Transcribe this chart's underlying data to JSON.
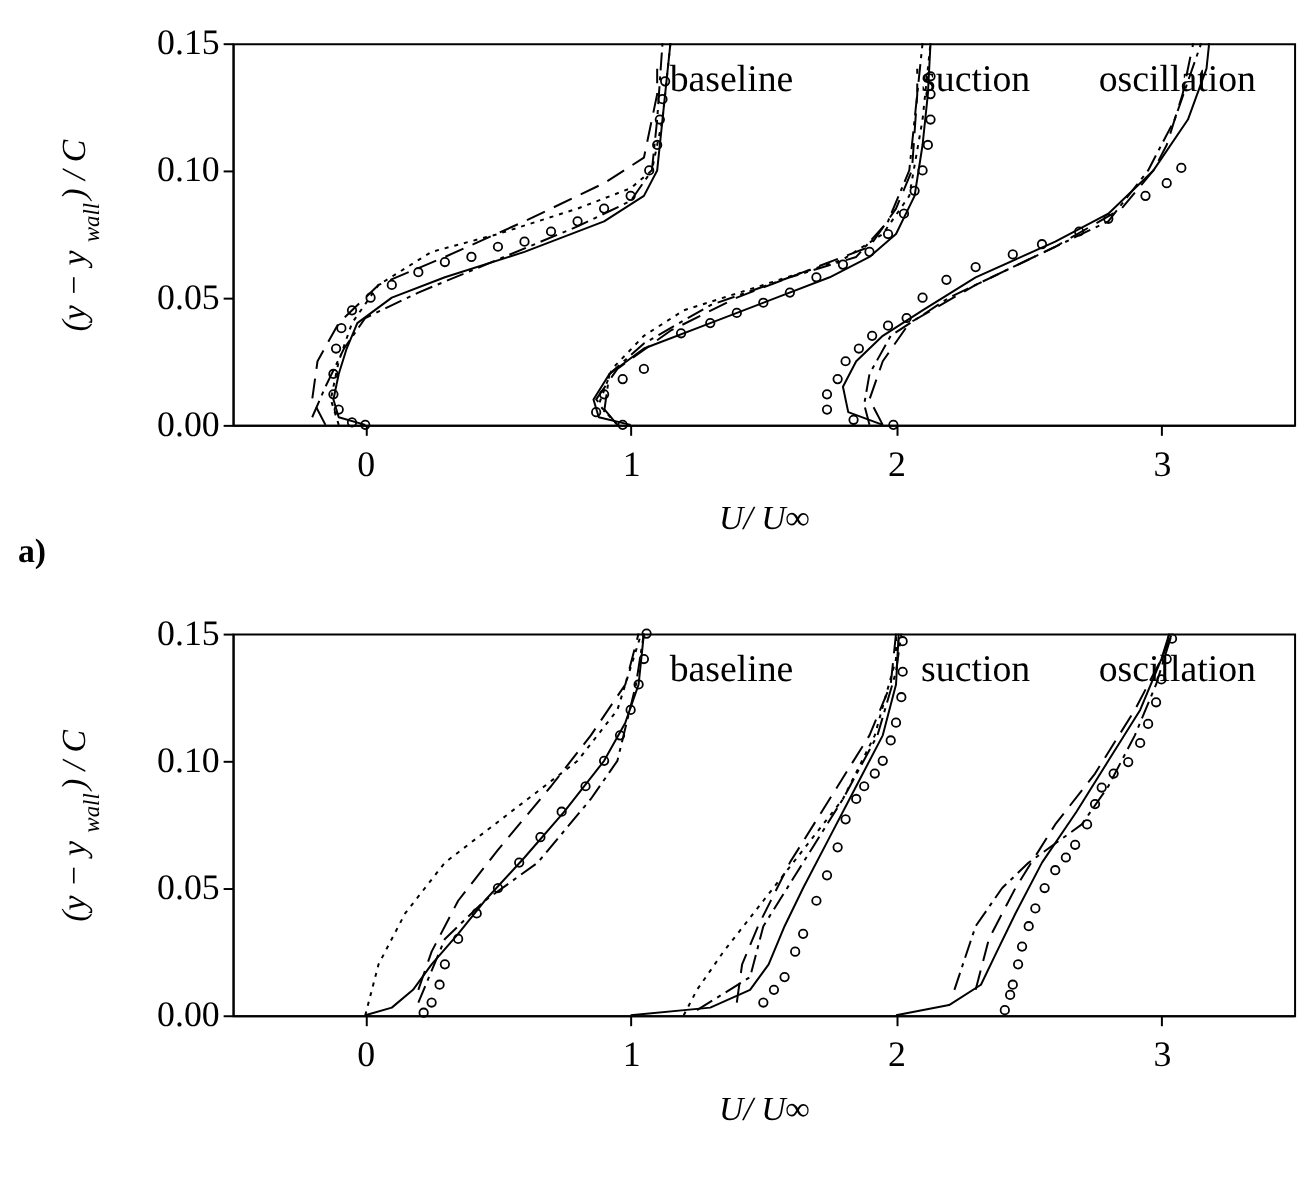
{
  "chart_data": [
    {
      "type": "line",
      "xlabel": "U/ U∞",
      "ylabel": "(y − y$_{wall}$) / C",
      "xlim": [
        -0.5,
        3.5
      ],
      "ylim": [
        0,
        0.15
      ],
      "xticks": [
        0,
        1,
        2,
        3
      ],
      "yticks": [
        {
          "value": 0,
          "label": "0.00"
        },
        {
          "value": 0.05,
          "label": "0.05"
        },
        {
          "value": 0.1,
          "label": "0.10"
        },
        {
          "value": 0.15,
          "label": "0.15"
        }
      ],
      "grid": false,
      "annotations": [
        "baseline",
        "suction",
        "oscillation",
        "a)"
      ],
      "series": [
        {
          "type": "line",
          "color": "#000000",
          "line_style": "solid",
          "x": [
            0,
            -0.1,
            -0.12,
            -0.1,
            -0.07,
            -0.03,
            0.1,
            0.3,
            0.6,
            0.9,
            1.05,
            1.1,
            1.12,
            1.15
          ],
          "values": [
            0,
            0.003,
            0.01,
            0.02,
            0.03,
            0.04,
            0.05,
            0.058,
            0.068,
            0.08,
            0.09,
            0.1,
            0.12,
            0.15
          ]
        },
        {
          "type": "line",
          "color": "#000000",
          "line_style": "dashed",
          "x": [
            -0.15,
            -0.2,
            -0.18,
            -0.1,
            0.05,
            0.3,
            0.6,
            0.9,
            1.05,
            1.1,
            1.1
          ],
          "values": [
            0,
            0.01,
            0.025,
            0.04,
            0.055,
            0.066,
            0.08,
            0.095,
            0.105,
            0.13,
            0.14
          ]
        },
        {
          "type": "line",
          "color": "#000000",
          "line_style": "dotted",
          "x": [
            -0.1,
            -0.13,
            -0.1,
            -0.05,
            0.05,
            0.25,
            0.5,
            0.8,
            1.0,
            1.08,
            1.12,
            1.15
          ],
          "values": [
            0,
            0.01,
            0.025,
            0.04,
            0.055,
            0.068,
            0.075,
            0.085,
            0.093,
            0.1,
            0.12,
            0.15
          ]
        },
        {
          "type": "line",
          "color": "#000000",
          "line_style": "dashdot",
          "x": [
            -0.2,
            -0.15,
            -0.08,
            0,
            0.2,
            0.5,
            0.8,
            1.0,
            1.08,
            1.1,
            1.12
          ],
          "values": [
            0.003,
            0.015,
            0.03,
            0.042,
            0.052,
            0.065,
            0.078,
            0.088,
            0.1,
            0.12,
            0.15
          ]
        },
        {
          "type": "scatter",
          "color": "#000000",
          "marker": "circle",
          "x": [
            0,
            -0.05,
            -0.1,
            -0.12,
            -0.12,
            -0.11,
            -0.09,
            -0.05,
            0.02,
            0.1,
            0.2,
            0.3,
            0.4,
            0.5,
            0.6,
            0.7,
            0.8,
            0.9,
            1.0,
            1.07,
            1.1,
            1.11,
            1.12,
            1.13
          ],
          "values": [
            0,
            0.001,
            0.006,
            0.012,
            0.02,
            0.03,
            0.038,
            0.045,
            0.05,
            0.055,
            0.06,
            0.064,
            0.066,
            0.07,
            0.072,
            0.076,
            0.08,
            0.085,
            0.09,
            0.1,
            0.11,
            0.12,
            0.128,
            0.135
          ]
        },
        {
          "type": "line",
          "color": "#000000",
          "line_style": "solid",
          "x": [
            1.0,
            0.88,
            0.86,
            0.92,
            1.05,
            1.3,
            1.55,
            1.75,
            1.9,
            2.0,
            2.07,
            2.1,
            2.12,
            2.13
          ],
          "values": [
            0,
            0.003,
            0.01,
            0.02,
            0.03,
            0.04,
            0.05,
            0.058,
            0.066,
            0.075,
            0.09,
            0.11,
            0.13,
            0.15
          ]
        },
        {
          "type": "line",
          "color": "#000000",
          "line_style": "dashed",
          "x": [
            0.95,
            0.87,
            0.95,
            1.15,
            1.4,
            1.7,
            1.9,
            2.0,
            2.06,
            2.08,
            2.08
          ],
          "values": [
            0,
            0.01,
            0.022,
            0.037,
            0.05,
            0.062,
            0.07,
            0.085,
            0.1,
            0.13,
            0.14
          ]
        },
        {
          "type": "line",
          "color": "#000000",
          "line_style": "dotted",
          "x": [
            0.95,
            0.88,
            0.93,
            1.05,
            1.2,
            1.5,
            1.8,
            1.95,
            2.05,
            2.1,
            2.13
          ],
          "values": [
            0,
            0.008,
            0.022,
            0.035,
            0.045,
            0.055,
            0.065,
            0.075,
            0.09,
            0.12,
            0.15
          ]
        },
        {
          "type": "line",
          "color": "#000000",
          "line_style": "dashdot",
          "x": [
            0.9,
            0.92,
            1.05,
            1.3,
            1.6,
            1.85,
            1.97,
            2.05,
            2.08,
            2.1
          ],
          "values": [
            0.005,
            0.02,
            0.032,
            0.047,
            0.058,
            0.066,
            0.08,
            0.1,
            0.13,
            0.15
          ]
        },
        {
          "type": "scatter",
          "color": "#000000",
          "marker": "circle",
          "x": [
            0.97,
            0.87,
            0.9,
            0.97,
            1.05,
            1.19,
            1.3,
            1.4,
            1.5,
            1.6,
            1.7,
            1.8,
            1.9,
            1.97,
            2.03,
            2.07,
            2.1,
            2.12,
            2.13,
            2.13,
            2.13
          ],
          "values": [
            0,
            0.005,
            0.012,
            0.018,
            0.022,
            0.036,
            0.04,
            0.044,
            0.048,
            0.052,
            0.058,
            0.063,
            0.068,
            0.075,
            0.083,
            0.092,
            0.1,
            0.11,
            0.12,
            0.13,
            0.137
          ]
        },
        {
          "type": "line",
          "color": "#000000",
          "line_style": "solid",
          "x": [
            1.95,
            1.82,
            1.8,
            1.85,
            1.95,
            2.1,
            2.3,
            2.6,
            2.8,
            2.97,
            3.1,
            3.17,
            3.18
          ],
          "values": [
            0,
            0.005,
            0.015,
            0.025,
            0.035,
            0.045,
            0.058,
            0.072,
            0.083,
            0.1,
            0.12,
            0.14,
            0.15
          ]
        },
        {
          "type": "line",
          "color": "#000000",
          "line_style": "dashed",
          "x": [
            1.95,
            1.9,
            1.95,
            2.05,
            2.3,
            2.6,
            2.85,
            2.97,
            3.02,
            3.08,
            3.12
          ],
          "values": [
            0,
            0.01,
            0.025,
            0.04,
            0.055,
            0.07,
            0.085,
            0.1,
            0.11,
            0.13,
            0.15
          ]
        },
        {
          "type": "line",
          "color": "#000000",
          "line_style": "dashdot",
          "x": [
            1.9,
            1.88,
            1.9,
            1.98,
            2.2,
            2.5,
            2.8,
            2.95,
            3.05,
            3.15
          ],
          "values": [
            0,
            0.008,
            0.02,
            0.035,
            0.05,
            0.065,
            0.08,
            0.1,
            0.12,
            0.15
          ]
        },
        {
          "type": "scatter",
          "color": "#000000",
          "marker": "circle",
          "x": [
            1.99,
            1.84,
            1.74,
            1.74,
            1.78,
            1.81,
            1.86,
            1.91,
            1.97,
            2.04,
            2.1,
            2.19,
            2.3,
            2.44,
            2.55,
            2.69,
            2.8,
            2.94,
            3.02,
            3.075
          ],
          "values": [
            0,
            0.002,
            0.006,
            0.012,
            0.018,
            0.025,
            0.03,
            0.035,
            0.039,
            0.042,
            0.05,
            0.057,
            0.062,
            0.067,
            0.071,
            0.076,
            0.081,
            0.09,
            0.095,
            0.101
          ]
        }
      ]
    },
    {
      "type": "line",
      "xlabel": "U/ U∞",
      "ylabel": "(y − y$_{wall}$) / C",
      "xlim": [
        -0.5,
        3.5
      ],
      "ylim": [
        0,
        0.15
      ],
      "xticks": [
        0,
        1,
        2,
        3
      ],
      "yticks": [
        {
          "value": 0,
          "label": "0.00"
        },
        {
          "value": 0.05,
          "label": "0.05"
        },
        {
          "value": 0.1,
          "label": "0.10"
        },
        {
          "value": 0.15,
          "label": "0.15"
        }
      ],
      "grid": false,
      "annotations": [
        "baseline",
        "suction",
        "oscillation"
      ],
      "series": [
        {
          "type": "line",
          "color": "#000000",
          "line_style": "solid",
          "x": [
            0,
            0.1,
            0.18,
            0.25,
            0.35,
            0.45,
            0.6,
            0.75,
            0.9,
            0.98,
            1.03,
            1.05
          ],
          "values": [
            0,
            0.003,
            0.01,
            0.02,
            0.032,
            0.045,
            0.062,
            0.08,
            0.1,
            0.115,
            0.13,
            0.15
          ]
        },
        {
          "type": "line",
          "color": "#000000",
          "line_style": "dashed",
          "x": [
            0.2,
            0.25,
            0.35,
            0.5,
            0.7,
            0.85,
            0.98,
            1.03
          ],
          "values": [
            0.01,
            0.025,
            0.045,
            0.065,
            0.09,
            0.11,
            0.13,
            0.15
          ]
        },
        {
          "type": "line",
          "color": "#000000",
          "line_style": "dotted",
          "x": [
            0,
            0.05,
            0.15,
            0.3,
            0.55,
            0.8,
            0.95,
            1.04
          ],
          "values": [
            0,
            0.02,
            0.04,
            0.06,
            0.08,
            0.1,
            0.12,
            0.15
          ]
        },
        {
          "type": "line",
          "color": "#000000",
          "line_style": "dashdot",
          "x": [
            0.2,
            0.3,
            0.45,
            0.65,
            0.85,
            0.95,
            1.02,
            1.05
          ],
          "values": [
            0.005,
            0.03,
            0.045,
            0.06,
            0.085,
            0.1,
            0.13,
            0.15
          ]
        },
        {
          "type": "scatter",
          "color": "#000000",
          "marker": "circle",
          "x": [
            0.22,
            0.25,
            0.28,
            0.3,
            0.35,
            0.42,
            0.5,
            0.58,
            0.66,
            0.74,
            0.83,
            0.9,
            0.96,
            1.0,
            1.03,
            1.05,
            1.06
          ],
          "values": [
            0.001,
            0.005,
            0.012,
            0.02,
            0.03,
            0.04,
            0.05,
            0.06,
            0.07,
            0.08,
            0.09,
            0.1,
            0.11,
            0.12,
            0.13,
            0.14,
            0.15
          ]
        },
        {
          "type": "line",
          "color": "#000000",
          "line_style": "solid",
          "x": [
            1.0,
            1.3,
            1.45,
            1.52,
            1.58,
            1.65,
            1.75,
            1.85,
            1.95,
            2.0,
            2.01
          ],
          "values": [
            0,
            0.003,
            0.01,
            0.02,
            0.035,
            0.05,
            0.07,
            0.09,
            0.11,
            0.13,
            0.15
          ]
        },
        {
          "type": "line",
          "color": "#000000",
          "line_style": "dashed",
          "x": [
            1.4,
            1.42,
            1.48,
            1.6,
            1.75,
            1.9,
            1.98,
            2.0
          ],
          "values": [
            0.005,
            0.02,
            0.035,
            0.06,
            0.085,
            0.11,
            0.13,
            0.15
          ]
        },
        {
          "type": "line",
          "color": "#000000",
          "line_style": "dotted",
          "x": [
            1.2,
            1.25,
            1.35,
            1.5,
            1.65,
            1.8,
            1.92,
            2.0,
            2.0
          ],
          "values": [
            0,
            0.01,
            0.025,
            0.045,
            0.065,
            0.085,
            0.11,
            0.14,
            0.15
          ]
        },
        {
          "type": "line",
          "color": "#000000",
          "line_style": "dashdot",
          "x": [
            1.25,
            1.45,
            1.5,
            1.62,
            1.8,
            1.93,
            2.0,
            2.02
          ],
          "values": [
            0.002,
            0.015,
            0.035,
            0.055,
            0.085,
            0.11,
            0.135,
            0.15
          ]
        },
        {
          "type": "scatter",
          "color": "#000000",
          "marker": "circle",
          "x": [
            1.5,
            1.54,
            1.58,
            1.62,
            1.65,
            1.7,
            1.74,
            1.78,
            1.81,
            1.85,
            1.88,
            1.92,
            1.95,
            1.98,
            2.0,
            2.02,
            2.025,
            2.025
          ],
          "values": [
            0.005,
            0.01,
            0.015,
            0.025,
            0.032,
            0.045,
            0.055,
            0.066,
            0.077,
            0.085,
            0.09,
            0.095,
            0.1,
            0.108,
            0.115,
            0.125,
            0.135,
            0.147
          ]
        },
        {
          "type": "line",
          "color": "#000000",
          "line_style": "solid",
          "x": [
            2.0,
            2.2,
            2.32,
            2.38,
            2.45,
            2.55,
            2.68,
            2.8,
            2.92,
            3.0,
            3.03
          ],
          "values": [
            0,
            0.004,
            0.012,
            0.025,
            0.04,
            0.06,
            0.08,
            0.1,
            0.12,
            0.14,
            0.15
          ]
        },
        {
          "type": "line",
          "color": "#000000",
          "line_style": "dashed",
          "x": [
            2.3,
            2.35,
            2.45,
            2.6,
            2.75,
            2.9,
            3.0,
            3.04
          ],
          "values": [
            0.01,
            0.03,
            0.05,
            0.075,
            0.095,
            0.12,
            0.14,
            0.15
          ]
        },
        {
          "type": "line",
          "color": "#000000",
          "line_style": "dashdot",
          "x": [
            2.22,
            2.3,
            2.4,
            2.5,
            2.7,
            2.8,
            2.9,
            2.98,
            3.04
          ],
          "values": [
            0.01,
            0.035,
            0.05,
            0.06,
            0.075,
            0.09,
            0.11,
            0.13,
            0.15
          ]
        },
        {
          "type": "scatter",
          "color": "#000000",
          "marker": "circle",
          "x": [
            2.41,
            2.43,
            2.44,
            2.46,
            2.475,
            2.5,
            2.525,
            2.56,
            2.6,
            2.64,
            2.675,
            2.72,
            2.75,
            2.775,
            2.82,
            2.875,
            2.92,
            2.95,
            2.98,
            3.0,
            3.02,
            3.04
          ],
          "values": [
            0.002,
            0.008,
            0.012,
            0.02,
            0.027,
            0.035,
            0.042,
            0.05,
            0.057,
            0.062,
            0.067,
            0.075,
            0.083,
            0.0895,
            0.095,
            0.0995,
            0.107,
            0.1145,
            0.123,
            0.132,
            0.14,
            0.148
          ]
        }
      ]
    }
  ]
}
